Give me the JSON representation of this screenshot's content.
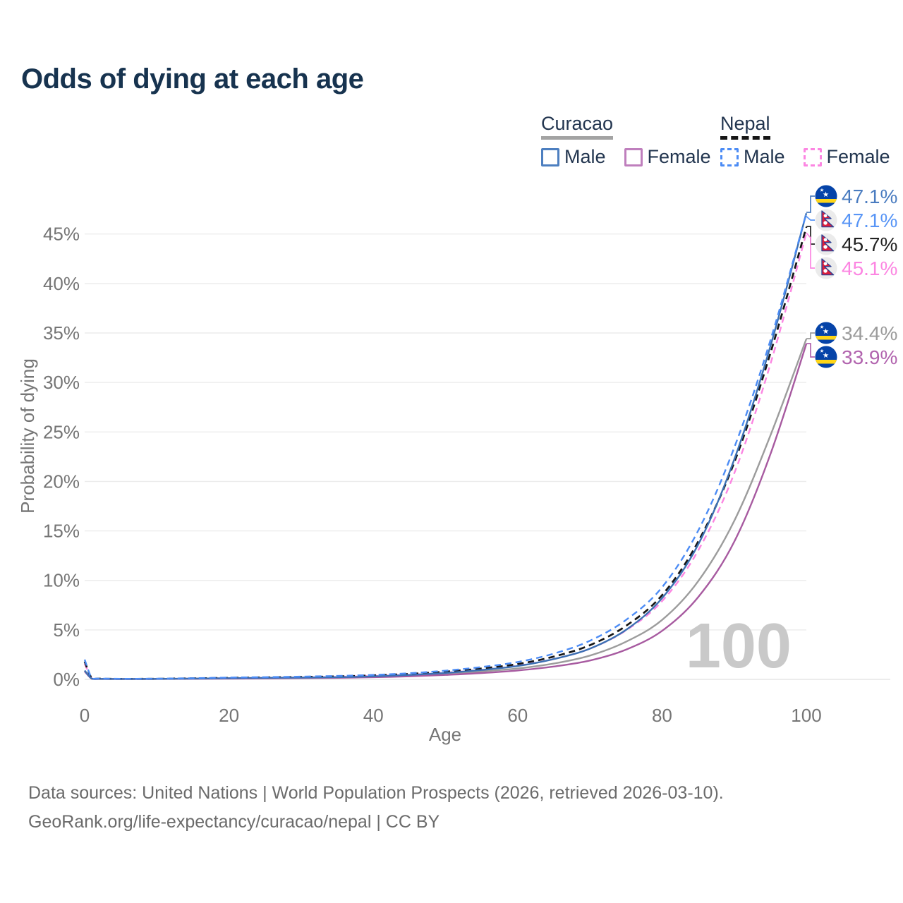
{
  "title": "Odds of dying at each age",
  "legend": {
    "groups": [
      {
        "country": "Curacao",
        "line_style": "solid",
        "items": [
          {
            "label": "Male",
            "color": "#4d7fc0",
            "dashed": false
          },
          {
            "label": "Female",
            "color": "#bf7fbd",
            "dashed": false
          }
        ]
      },
      {
        "country": "Nepal",
        "line_style": "dashed",
        "items": [
          {
            "label": "Male",
            "color": "#4c8cf5",
            "dashed": true
          },
          {
            "label": "Female",
            "color": "#fc86e2",
            "dashed": true
          }
        ]
      }
    ]
  },
  "chart_data": {
    "type": "line",
    "title": "Odds of dying at each age",
    "xlabel": "Age",
    "ylabel": "Probability of dying",
    "xlim": [
      0,
      100
    ],
    "ylim": [
      0,
      47.5
    ],
    "grid": "horizontal",
    "x_ticks": [
      "0",
      "20",
      "40",
      "60",
      "80",
      "100"
    ],
    "y_ticks": [
      "0%",
      "5%",
      "10%",
      "15%",
      "20%",
      "25%",
      "30%",
      "35%",
      "40%",
      "45%"
    ],
    "watermark": "100",
    "ages": [
      0,
      1,
      2,
      5,
      10,
      15,
      20,
      25,
      30,
      35,
      40,
      45,
      50,
      55,
      60,
      65,
      70,
      75,
      80,
      85,
      90,
      95,
      100
    ],
    "series": [
      {
        "id": "curacao_total",
        "name": "Curacao — both sexes",
        "color": "#9c9c9c",
        "dashed": false,
        "end_value": 34.4,
        "values": [
          0.85,
          0.06,
          0.04,
          0.04,
          0.04,
          0.07,
          0.1,
          0.13,
          0.16,
          0.2,
          0.27,
          0.38,
          0.55,
          0.8,
          1.1,
          1.6,
          2.4,
          3.8,
          6.0,
          9.9,
          16.0,
          24.6,
          34.4
        ]
      },
      {
        "id": "curacao_female",
        "name": "Curacao — Female",
        "color": "#a75aa0",
        "dashed": false,
        "end_value": 33.9,
        "values": [
          0.8,
          0.06,
          0.04,
          0.03,
          0.04,
          0.06,
          0.08,
          0.1,
          0.13,
          0.16,
          0.22,
          0.31,
          0.45,
          0.64,
          0.9,
          1.3,
          1.9,
          3.0,
          4.9,
          8.3,
          13.9,
          22.7,
          33.9
        ]
      },
      {
        "id": "nepal_female",
        "name": "Nepal — Female",
        "color": "#fc86e2",
        "dashed": true,
        "end_value": 45.1,
        "values": [
          1.6,
          0.1,
          0.06,
          0.05,
          0.05,
          0.08,
          0.12,
          0.16,
          0.2,
          0.26,
          0.35,
          0.48,
          0.68,
          0.97,
          1.38,
          2.05,
          3.1,
          4.95,
          7.9,
          13.0,
          20.8,
          31.8,
          45.1
        ]
      },
      {
        "id": "nepal_total",
        "name": "Nepal — both sexes",
        "color": "#161616",
        "dashed": true,
        "end_value": 45.7,
        "values": [
          1.8,
          0.11,
          0.07,
          0.05,
          0.06,
          0.1,
          0.15,
          0.19,
          0.24,
          0.3,
          0.4,
          0.55,
          0.78,
          1.1,
          1.55,
          2.3,
          3.45,
          5.4,
          8.5,
          13.9,
          21.9,
          32.9,
          45.7
        ]
      },
      {
        "id": "curacao_male",
        "name": "Curacao — Male",
        "color": "#3c70b3",
        "dashed": false,
        "end_value": 47.1,
        "values": [
          0.9,
          0.07,
          0.05,
          0.04,
          0.05,
          0.08,
          0.12,
          0.15,
          0.18,
          0.22,
          0.3,
          0.45,
          0.65,
          0.95,
          1.35,
          2.05,
          3.1,
          5.0,
          8.2,
          13.6,
          22.2,
          33.6,
          47.1
        ]
      },
      {
        "id": "nepal_male",
        "name": "Nepal — Male",
        "color": "#4c8cf5",
        "dashed": true,
        "end_value": 47.1,
        "values": [
          2.0,
          0.12,
          0.08,
          0.06,
          0.07,
          0.12,
          0.18,
          0.22,
          0.28,
          0.35,
          0.45,
          0.62,
          0.88,
          1.25,
          1.75,
          2.6,
          3.9,
          6.0,
          9.3,
          15.0,
          23.4,
          34.2,
          47.1
        ]
      }
    ]
  },
  "end_labels": [
    {
      "text": "47.1%",
      "color": "#4a7cc0",
      "flag": "curacao",
      "series": "curacao_male"
    },
    {
      "text": "47.1%",
      "color": "#5895f6",
      "flag": "nepal",
      "series": "nepal_male"
    },
    {
      "text": "45.7%",
      "color": "#222222",
      "flag": "nepal",
      "series": "nepal_total"
    },
    {
      "text": "45.1%",
      "color": "#fc86e2",
      "flag": "nepal",
      "series": "nepal_female"
    },
    {
      "text": "34.4%",
      "color": "#9b9b9b",
      "flag": "curacao",
      "series": "curacao_total"
    },
    {
      "text": "33.9%",
      "color": "#b163ae",
      "flag": "curacao",
      "series": "curacao_female"
    }
  ],
  "footer": {
    "line1": "Data sources: United Nations | World Population Prospects (2026, retrieved 2026-03-10).",
    "line2": "GeoRank.org/life-expectancy/curacao/nepal | CC BY"
  }
}
